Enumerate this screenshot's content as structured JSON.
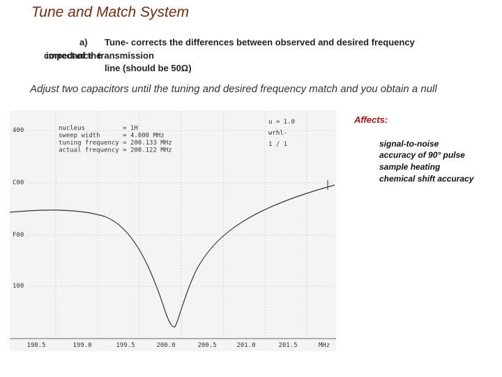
{
  "header": {
    "title": "Tune and Match System"
  },
  "items": [
    {
      "marker": "a)",
      "text": "Tune- corrects the differences between observed and desired frequency"
    },
    {
      "overlapped_words": [
        "correct",
        "impedance",
        "of the",
        "transmission"
      ],
      "text": "line (should be 50Ω)"
    }
  ],
  "instruction": "Adjust two capacitors until the tuning and desired frequency match and you obtain a null",
  "affects": {
    "heading": "Affects:",
    "list": [
      "signal-to-noise",
      "accuracy of 90° pulse",
      "sample heating",
      "chemical shift accuracy"
    ]
  },
  "scope": {
    "info": [
      "nucleus          = 1H",
      "sweep width      = 4.000 MHz",
      "tuning frequency = 200.133 MHz",
      "actual frequency = 200.122 MHz"
    ],
    "status": [
      "u = 1.0",
      "wrhl-",
      "1 / 1"
    ],
    "y_labels": [
      "400",
      "C00",
      "F00",
      "100"
    ],
    "x_labels": [
      "198.5",
      "199.0",
      "199.5",
      "200.0",
      "200.5",
      "201.0",
      "201.5",
      "MHz"
    ]
  }
}
